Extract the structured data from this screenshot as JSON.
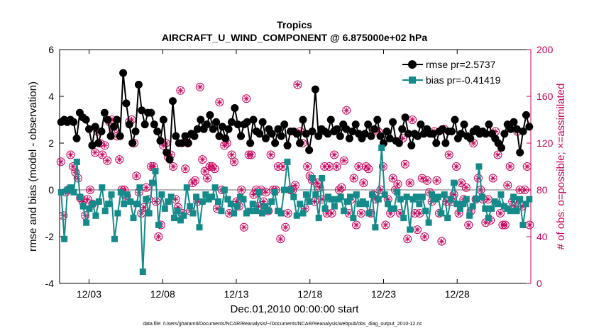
{
  "chart_data": {
    "type": "line",
    "title": "Tropics",
    "subtitle": "AIRCRAFT_U_WIND_COMPONENT @ 6.875000e+02 hPa",
    "xlabel": "Dec.01,2010 00:00:00 start",
    "ylabel_left": "rmse and bias (model - observation)",
    "ylabel_right": "# of obs: o=possible; ×=assimilated",
    "footnote": "data file: /Users/gharamti/Documents/NCAR/Reanalysis/~/Documents/NCAR/Reanalysis/webpub/obs_diag_output_2010-12.nc",
    "xlim": [
      1,
      33
    ],
    "ylim_left": [
      -4,
      6
    ],
    "ylim_right": [
      0,
      200
    ],
    "xtick_values": [
      3,
      8,
      13,
      18,
      23,
      28
    ],
    "xtick_labels": [
      "12/03",
      "12/08",
      "12/13",
      "12/18",
      "12/23",
      "12/28"
    ],
    "ytick_left": [
      "-4",
      "-2",
      "0",
      "2",
      "4",
      "6"
    ],
    "ytick_right": [
      "0",
      "40",
      "80",
      "120",
      "160",
      "200"
    ],
    "legend": [
      "rmse pr=2.5737",
      "bias pr=-0.41419"
    ],
    "colors": {
      "rmse": "#000000",
      "bias": "#148a8a",
      "counts": "#c8005a",
      "zero_line": "#b4b4b4"
    },
    "series": [
      {
        "name": "rmse",
        "axis": "left",
        "values": [
          2.9,
          3.0,
          2.9,
          3.0,
          2.9,
          2.2,
          3.3,
          3.1,
          3.0,
          2.6,
          1.9,
          2.7,
          2.0,
          2.5,
          3.3,
          3.0,
          2.3,
          2.7,
          3.0,
          2.3,
          5.0,
          3.7,
          2.8,
          2.0,
          2.5,
          4.5,
          3.4,
          2.8,
          3.3,
          3.3,
          2.8,
          2.5,
          2.1,
          3.0,
          1.6,
          1.3,
          3.8,
          2.3,
          2.0,
          2.0,
          2.3,
          2.0,
          2.4,
          2.3,
          2.6,
          3.0,
          2.6,
          2.8,
          3.2,
          2.6,
          2.9,
          2.3,
          2.7,
          2.2,
          2.6,
          2.9,
          3.5,
          2.8,
          2.3,
          2.8,
          2.9,
          2.0,
          3.0,
          2.5,
          2.4,
          2.9,
          2.2,
          2.6,
          2.4,
          2.0,
          2.6,
          2.3,
          2.8,
          1.9,
          2.5,
          2.5,
          2.4,
          2.0,
          3.0,
          2.4,
          1.7,
          2.5,
          4.3,
          2.3,
          2.6,
          2.5,
          2.4,
          3.0,
          2.5,
          2.6,
          2.3,
          2.8,
          2.6,
          2.2,
          2.5,
          2.8,
          2.4,
          2.2,
          2.4,
          2.8,
          2.3,
          2.6,
          3.0,
          2.3,
          2.0,
          2.5,
          2.2,
          2.9,
          2.1,
          2.0,
          2.6,
          3.1,
          2.4,
          1.9,
          2.4,
          2.3,
          2.8,
          2.4,
          2.6,
          2.4,
          2.4,
          2.0,
          2.5,
          2.6,
          2.0,
          2.5,
          2.5,
          3.0,
          2.2,
          2.4,
          2.8,
          2.3,
          2.2,
          2.5,
          2.6,
          2.4,
          2.5,
          2.4,
          2.8,
          2.4,
          2.2,
          2.0,
          1.8,
          2.4,
          2.8,
          2.6,
          2.9,
          2.6,
          1.6,
          2.5,
          3.2,
          2.7
        ]
      },
      {
        "name": "bias",
        "axis": "left",
        "values": [
          -0.1,
          -2.1,
          0.0,
          0.1,
          -0.1,
          1.2,
          -0.3,
          -0.7,
          -1.4,
          -0.8,
          -0.6,
          -1.1,
          -0.5,
          0.1,
          -0.9,
          -0.6,
          -0.2,
          -2.1,
          -1.0,
          -0.1,
          -0.6,
          -0.2,
          -0.5,
          -1.2,
          -0.6,
          0.1,
          -3.5,
          -0.4,
          -1.0,
          0.3,
          0.8,
          -1.5,
          -0.2,
          -0.8,
          -0.5,
          -0.3,
          -1.2,
          -0.9,
          -1.3,
          -1.1,
          0.1,
          -0.7,
          -1.0,
          -0.3,
          -1.6,
          -0.5,
          -0.2,
          -0.4,
          -0.3,
          0.1,
          -0.5,
          -0.9,
          0.0,
          -0.4,
          -0.6,
          -1.0,
          -0.7,
          -0.3,
          -0.4,
          -1.0,
          -0.9,
          -0.6,
          -0.9,
          -0.1,
          -1.0,
          -0.7,
          -0.9,
          -0.5,
          -0.1,
          -0.9,
          -1.0,
          0.0,
          1.2,
          0.0,
          -0.3,
          -1.1,
          -0.6,
          -1.0,
          -0.2,
          -0.5,
          0.5,
          -0.2,
          -1.2,
          0.5,
          -0.8,
          -0.3,
          -0.4,
          -0.7,
          -0.4,
          -0.3,
          -0.9,
          -0.5,
          -0.3,
          -1.2,
          -0.2,
          -0.6,
          -0.5,
          -0.6,
          -1.0,
          -0.2,
          -1.6,
          -0.4,
          1.8,
          -0.2,
          -0.6,
          -0.8,
          -0.8,
          -0.1,
          -0.4,
          -1.2,
          -0.3,
          -1.7,
          -0.4,
          -0.3,
          -0.6,
          -0.3,
          -0.9,
          -1.4,
          -0.2,
          -0.4,
          -0.3,
          -1.0,
          -0.2,
          -1.2,
          -0.4,
          0.3,
          -0.6,
          -0.8,
          -0.6,
          -0.4,
          -1.1,
          -0.7,
          -0.4,
          1.0,
          -0.3,
          -0.8,
          -1.2,
          -0.8,
          -0.5,
          -0.6,
          -0.2,
          -0.7,
          -0.8,
          -0.9,
          -0.3,
          -0.9,
          -0.4,
          -1.5,
          -0.6,
          -0.4
        ]
      },
      {
        "name": "obs_possible",
        "axis": "right",
        "values": [
          104,
          58,
          78,
          80,
          110,
          100,
          95,
          90,
          73,
          70,
          58,
          72,
          80,
          68,
          112,
          130,
          120,
          110,
          118,
          105,
          138,
          140,
          132,
          126,
          106,
          80,
          80,
          75,
          138,
          140,
          120,
          92,
          78,
          60,
          65,
          82,
          72,
          100,
          100,
          70,
          40,
          50,
          118,
          120,
          108,
          110,
          100,
          72,
          65,
          165,
          60,
          98,
          120,
          62,
          86,
          88,
          70,
          168,
          106,
          96,
          90,
          100,
          100,
          98,
          64,
          155,
          80,
          118,
          120,
          60,
          110,
          104,
          70,
          66,
          80,
          48,
          158,
          110,
          110,
          76,
          80,
          66,
          80,
          70,
          78,
          62,
          110,
          80,
          80,
          100,
          38,
          100,
          48,
          60,
          80,
          80,
          84,
          170,
          130,
          120,
          64,
          100,
          92,
          88,
          70,
          86,
          82,
          72,
          100,
          60,
          100,
          60,
          110,
          100,
          80,
          82,
          105,
          148,
          60,
          72,
          90,
          50,
          100,
          60,
          86,
          100,
          98,
          60,
          76,
          72,
          130,
          80,
          100,
          50,
          72,
          60,
          90,
          80,
          85,
          60,
          124,
          102,
          38,
          86,
          140,
          60,
          46,
          60,
          90,
          40,
          88,
          78,
          70,
          130,
          88,
          60,
          36,
          132,
          70,
          110,
          70,
          76,
          100,
          60,
          86,
          72,
          82,
          50,
          62,
          120,
          72,
          90,
          80,
          72,
          52,
          72,
          54,
          90,
          130,
          110,
          60,
          50,
          50,
          84,
          100,
          70,
          66,
          130,
          80,
          66,
          80,
          100,
          50
        ]
      },
      {
        "name": "obs_assimilated",
        "axis": "right",
        "values": [
          104,
          58,
          78,
          80,
          110,
          100,
          95,
          90,
          73,
          70,
          58,
          72,
          80,
          68,
          112,
          130,
          120,
          110,
          118,
          105,
          138,
          140,
          132,
          126,
          106,
          80,
          80,
          75,
          138,
          140,
          120,
          92,
          78,
          60,
          65,
          82,
          72,
          100,
          100,
          70,
          40,
          50,
          118,
          120,
          108,
          110,
          100,
          72,
          65,
          165,
          60,
          98,
          120,
          62,
          86,
          88,
          70,
          168,
          106,
          96,
          90,
          100,
          100,
          98,
          64,
          155,
          80,
          118,
          120,
          60,
          110,
          104,
          70,
          66,
          80,
          48,
          158,
          110,
          110,
          76,
          80,
          66,
          80,
          70,
          78,
          62,
          110,
          80,
          80,
          100,
          38,
          100,
          48,
          60,
          80,
          80,
          84,
          170,
          130,
          120,
          64,
          100,
          92,
          88,
          70,
          86,
          82,
          72,
          100,
          60,
          100,
          60,
          110,
          100,
          80,
          82,
          105,
          148,
          60,
          72,
          90,
          50,
          100,
          60,
          86,
          100,
          98,
          60,
          76,
          72,
          130,
          80,
          100,
          50,
          72,
          60,
          90,
          80,
          85,
          60,
          124,
          102,
          38,
          86,
          140,
          60,
          46,
          60,
          90,
          40,
          88,
          78,
          70,
          130,
          88,
          60,
          36,
          132,
          70,
          110,
          70,
          76,
          100,
          60,
          86,
          72,
          82,
          50,
          62,
          120,
          72,
          90,
          80,
          72,
          52,
          72,
          54,
          90,
          130,
          110,
          60,
          50,
          50,
          84,
          100,
          70,
          66,
          130,
          80,
          66,
          80,
          100,
          50
        ]
      }
    ]
  }
}
